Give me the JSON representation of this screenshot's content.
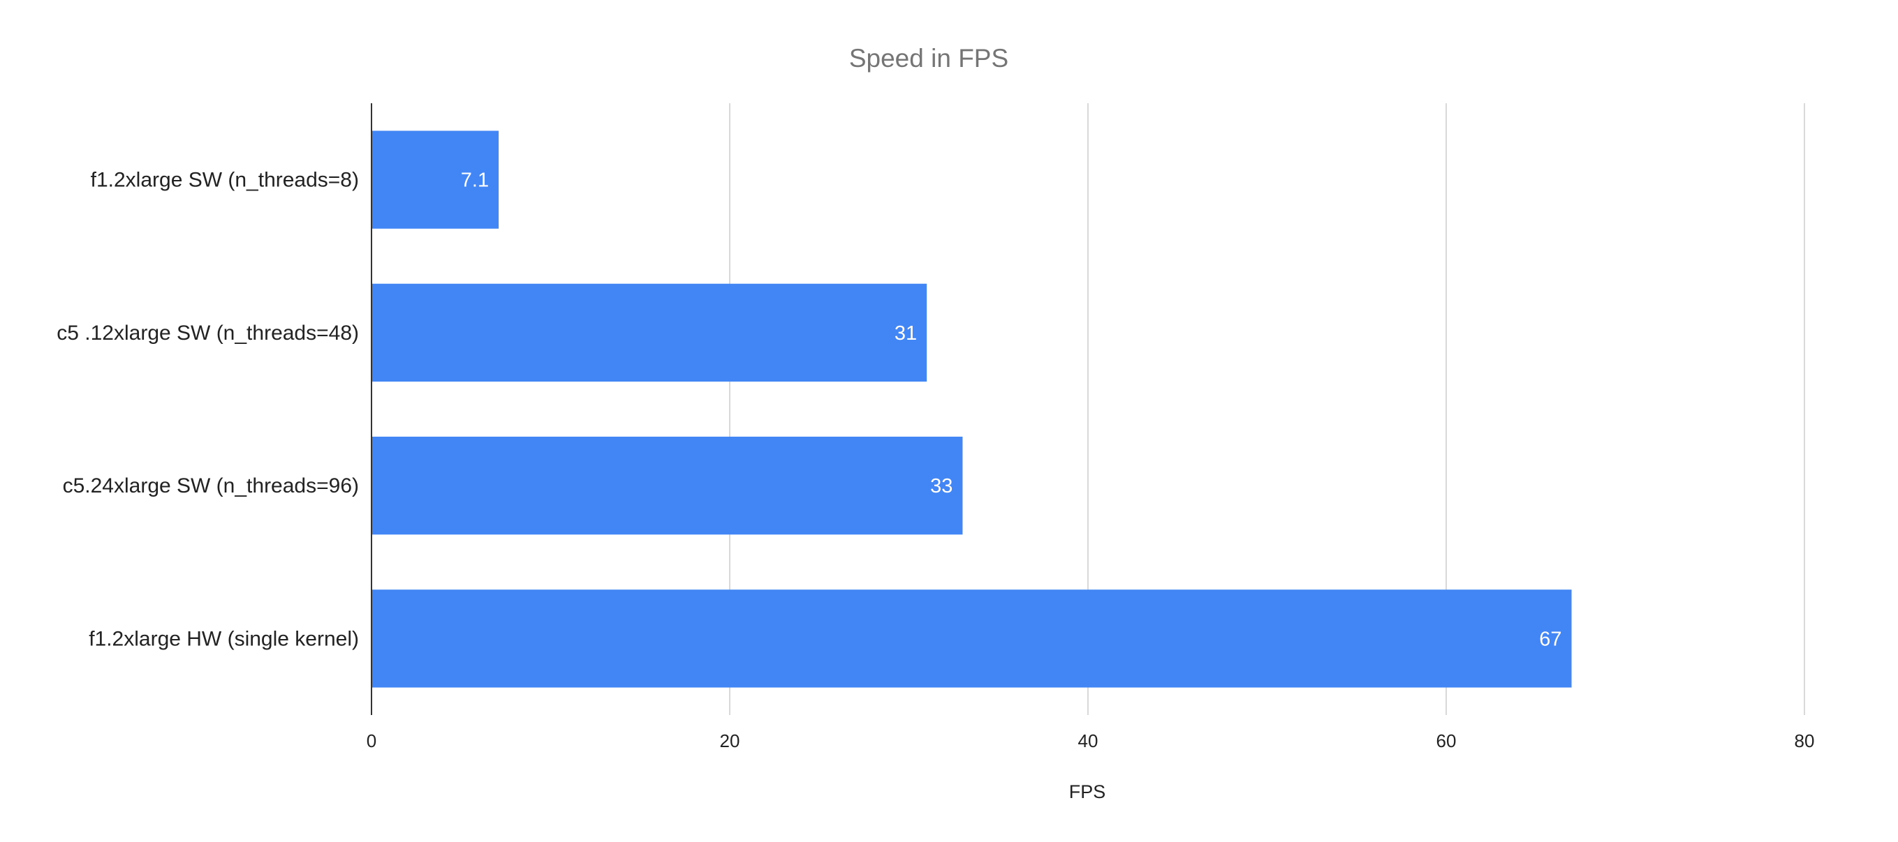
{
  "chart_data": {
    "type": "bar",
    "orientation": "horizontal",
    "title": "Speed in FPS",
    "xlabel": "FPS",
    "ylabel": "",
    "categories": [
      "f1.2xlarge SW (n_threads=8)",
      "c5 .12xlarge SW (n_threads=48)",
      "c5.24xlarge SW (n_threads=96)",
      "f1.2xlarge HW (single kernel)"
    ],
    "values": [
      7.1,
      31,
      33,
      67
    ],
    "data_labels": [
      "7.1",
      "31",
      "33",
      "67"
    ],
    "xlim": [
      0,
      80
    ],
    "x_ticks": [
      0,
      20,
      40,
      60,
      80
    ],
    "x_tick_labels": [
      "0",
      "20",
      "40",
      "60",
      "80"
    ],
    "grid": true,
    "legend": "none",
    "colors": {
      "bar": "#4285f4",
      "title": "#757575",
      "gridline": "#d9d9d9"
    }
  }
}
